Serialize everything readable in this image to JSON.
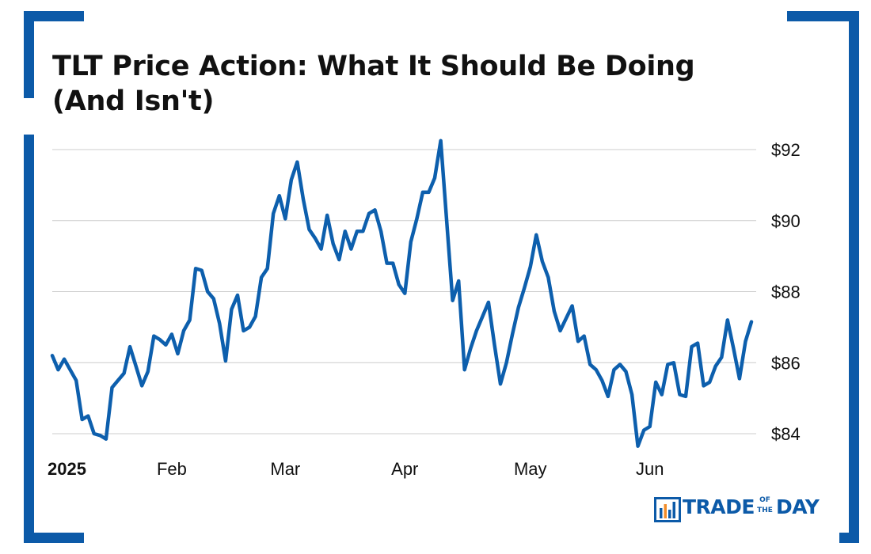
{
  "title": "TLT Price Action: What It Should Be Doing (And Isn't)",
  "colors": {
    "accent": "#0c5aa8",
    "line": "#0d5fad",
    "grid": "#cccccc",
    "text": "#111111"
  },
  "logo": {
    "name": "trade-of-the-day-logo",
    "part1": "TRADE",
    "of": "OF",
    "the": "THE",
    "part2": "DAY"
  },
  "chart_data": {
    "type": "line",
    "title": "TLT Price Action: What It Should Be Doing (And Isn't)",
    "xlabel": "",
    "ylabel": "",
    "x_ticks": [
      "2025",
      "Feb",
      "Mar",
      "Apr",
      "May",
      "Jun"
    ],
    "x_tick_indices": [
      0,
      20,
      39,
      59,
      80,
      100
    ],
    "y_ticks": [
      {
        "value": 84,
        "label": "$84"
      },
      {
        "value": 86,
        "label": "$86"
      },
      {
        "value": 88,
        "label": "$88"
      },
      {
        "value": 90,
        "label": "$90"
      },
      {
        "value": 92,
        "label": "$92"
      }
    ],
    "ylim": [
      83.6,
      92.3
    ],
    "y_axis_position": "right",
    "grid": true,
    "legend": "none",
    "series": [
      {
        "values": [
          86.2,
          85.8,
          86.1,
          85.8,
          85.5,
          84.4,
          84.5,
          84.0,
          83.95,
          83.85,
          85.3,
          85.5,
          85.7,
          86.45,
          85.9,
          85.35,
          85.75,
          86.75,
          86.65,
          86.5,
          86.8,
          86.25,
          86.9,
          87.2,
          88.65,
          88.6,
          88.0,
          87.8,
          87.1,
          86.05,
          87.5,
          87.9,
          86.9,
          87.0,
          87.3,
          88.4,
          88.65,
          90.2,
          90.7,
          90.05,
          91.15,
          91.65,
          90.6,
          89.75,
          89.5,
          89.2,
          90.15,
          89.35,
          88.9,
          89.7,
          89.2,
          89.7,
          89.7,
          90.2,
          90.3,
          89.7,
          88.8,
          88.8,
          88.2,
          87.95,
          89.4,
          90.05,
          90.8,
          90.8,
          91.2,
          92.25,
          90.0,
          87.75,
          88.3,
          85.8,
          86.4,
          86.9,
          87.3,
          87.7,
          86.5,
          85.4,
          86.0,
          86.8,
          87.55,
          88.1,
          88.7,
          89.6,
          88.85,
          88.4,
          87.45,
          86.9,
          87.25,
          87.6,
          86.6,
          86.75,
          85.95,
          85.8,
          85.5,
          85.05,
          85.8,
          85.95,
          85.75,
          85.1,
          83.65,
          84.1,
          84.2,
          85.45,
          85.1,
          85.95,
          86.0,
          85.1,
          85.05,
          86.45,
          86.55,
          85.35,
          85.45,
          85.9,
          86.15,
          87.2,
          86.4,
          85.55,
          86.6,
          87.15
        ]
      }
    ]
  }
}
